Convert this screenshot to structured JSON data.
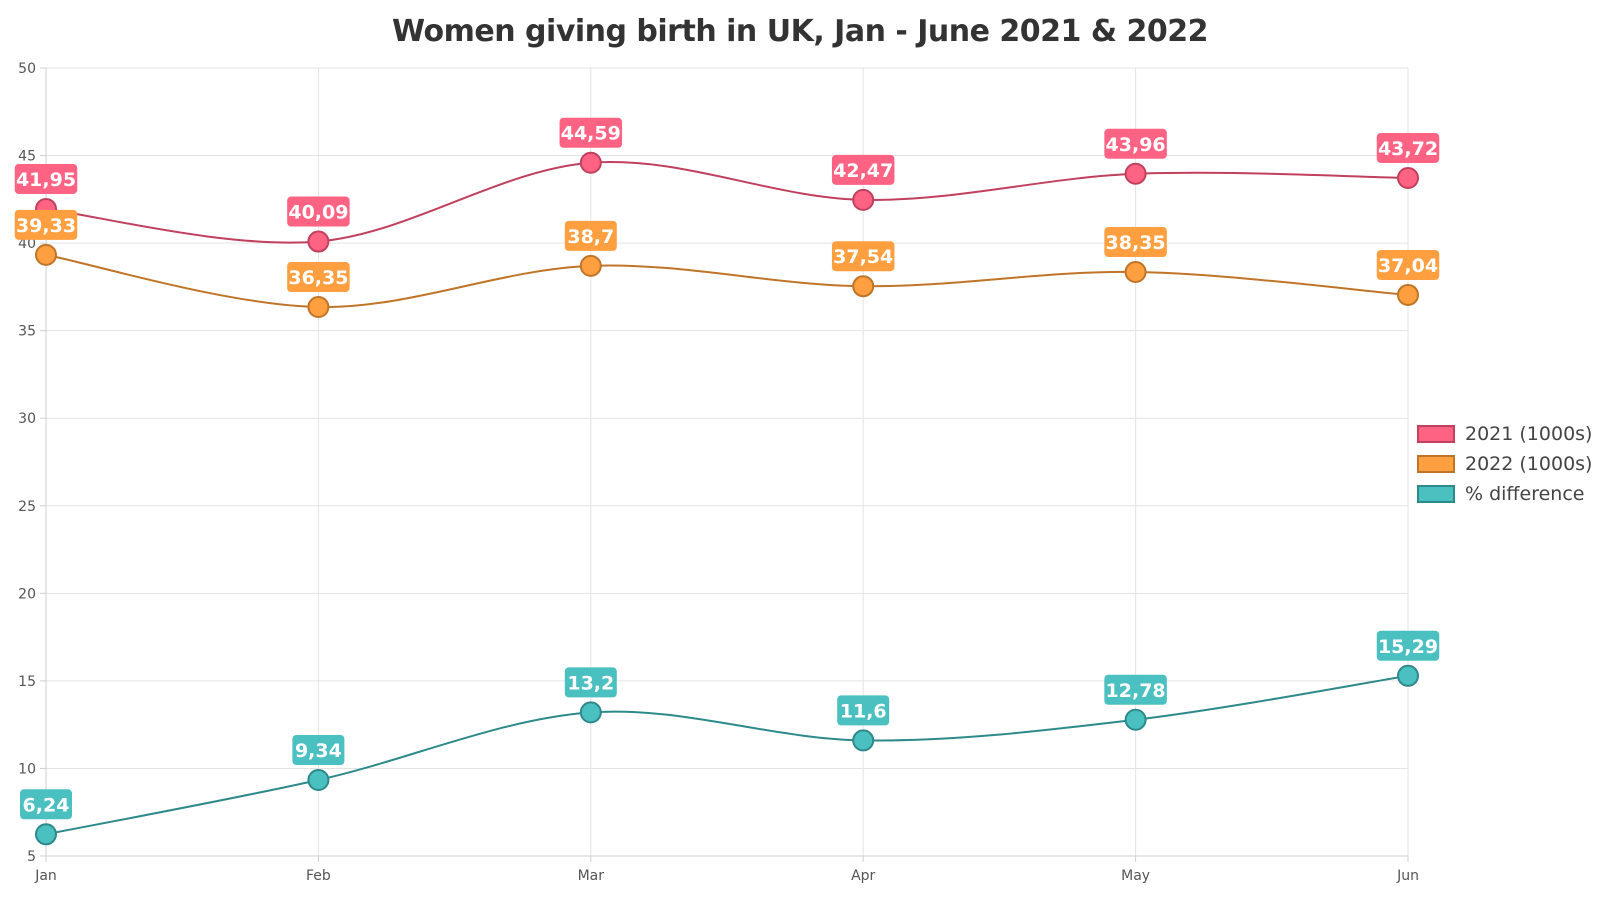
{
  "chart_data": {
    "type": "line",
    "title": "Women giving birth in UK, Jan - June 2021 & 2022",
    "xlabel": "",
    "ylabel": "",
    "categories": [
      "Jan",
      "Feb",
      "Mar",
      "Apr",
      "May",
      "Jun"
    ],
    "ylim": [
      5,
      50
    ],
    "yticks": [
      "5",
      "10",
      "15",
      "20",
      "25",
      "30",
      "35",
      "40",
      "45",
      "50"
    ],
    "grid": true,
    "legend_position": "right",
    "series": [
      {
        "name": "2021 (1000s)",
        "values": [
          41.95,
          40.09,
          44.59,
          42.47,
          43.96,
          43.72
        ],
        "labels": [
          "41,95",
          "40,09",
          "44,59",
          "42,47",
          "43,96",
          "43,72"
        ],
        "color": "#ff6384",
        "line_color": "#c0405e"
      },
      {
        "name": "2022 (1000s)",
        "values": [
          39.33,
          36.35,
          38.7,
          37.54,
          38.35,
          37.04
        ],
        "labels": [
          "39,33",
          "36,35",
          "38,7",
          "37,54",
          "38,35",
          "37,04"
        ],
        "color": "#ff9f40",
        "line_color": "#c07428"
      },
      {
        "name": "% difference",
        "values": [
          6.24,
          9.34,
          13.2,
          11.6,
          12.78,
          15.29
        ],
        "labels": [
          "6,24",
          "9,34",
          "13,2",
          "11,6",
          "12,78",
          "15,29"
        ],
        "color": "#4bc0c0",
        "line_color": "#2e8a8a"
      }
    ]
  }
}
